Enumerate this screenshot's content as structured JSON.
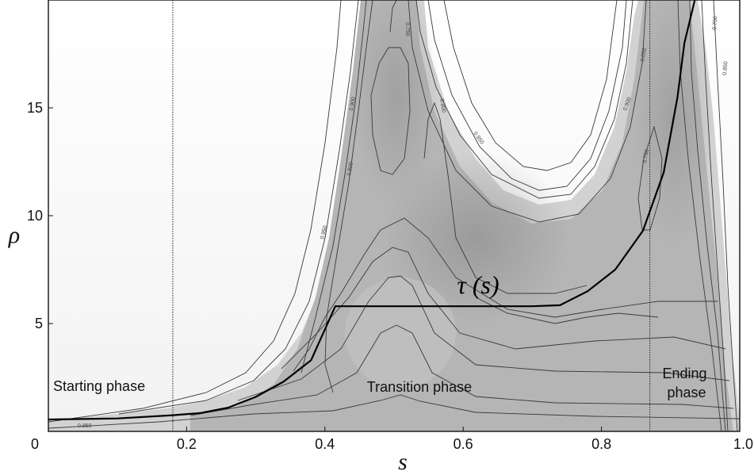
{
  "chart_data": {
    "type": "heatmap",
    "title": "",
    "xlabel": "s",
    "ylabel": "ρ",
    "xlim": [
      0,
      1.0
    ],
    "ylim": [
      0,
      20
    ],
    "x_ticks": [
      "0",
      "0.2",
      "0.4",
      "0.6",
      "0.8",
      "1.0"
    ],
    "y_ticks": [
      "5",
      "10",
      "15"
    ],
    "colormap": "grayscale, lighter = higher value",
    "contour_levels": [
      "0.750",
      "0.800",
      "0.850",
      "0.900",
      "0.950"
    ],
    "curve_label": "τ (s)",
    "curve": {
      "name": "τ (s)",
      "x": [
        0,
        0.1,
        0.18,
        0.22,
        0.26,
        0.3,
        0.34,
        0.38,
        0.415,
        0.5,
        0.6,
        0.7,
        0.74,
        0.78,
        0.82,
        0.86,
        0.89,
        0.91,
        0.92,
        0.935
      ],
      "y": [
        0.55,
        0.6,
        0.75,
        0.85,
        1.1,
        1.6,
        2.3,
        3.3,
        5.8,
        5.8,
        5.8,
        5.8,
        5.85,
        6.5,
        7.5,
        9.3,
        12.0,
        15.5,
        18.0,
        20.0
      ]
    },
    "phase_boundaries": [
      0.18,
      0.87
    ],
    "phases": [
      "Starting phase",
      "Transition phase",
      "Ending phase"
    ],
    "grid": false
  }
}
